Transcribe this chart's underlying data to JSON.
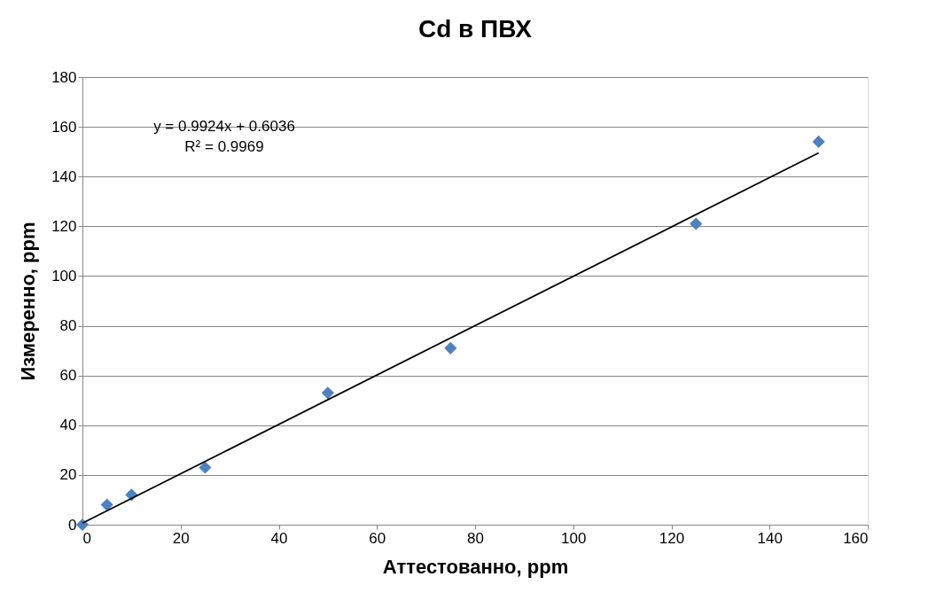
{
  "chart_data": {
    "type": "scatter",
    "title": "Cd в ПВХ",
    "xlabel": "Аттестованно, ppm",
    "ylabel": "Измеренно, ppm",
    "series": [
      {
        "color": "#4f81bd",
        "marker": "diamond",
        "x": [
          0,
          5,
          10,
          25,
          50,
          75,
          125,
          150
        ],
        "values": [
          0,
          8,
          12,
          23,
          53,
          71,
          121,
          154
        ]
      },
      {
        "type": "line",
        "color": "#000000",
        "marker": "none",
        "x": [
          0,
          150
        ],
        "values": [
          0.6,
          149.5
        ]
      }
    ],
    "annotations": [
      {
        "text": "y = 0.9924x + 0.6036"
      },
      {
        "text": "R² = 0.9969"
      }
    ],
    "xlim": [
      0,
      160
    ],
    "xticks": [
      0,
      20,
      40,
      60,
      80,
      100,
      120,
      140,
      160
    ],
    "ylim": [
      0,
      180
    ],
    "yticks": [
      0,
      20,
      40,
      60,
      80,
      100,
      120,
      140,
      160,
      180
    ],
    "grid": "y"
  }
}
